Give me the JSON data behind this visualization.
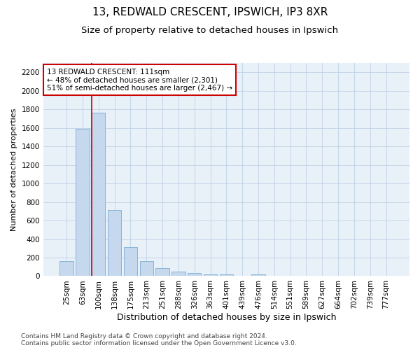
{
  "title1": "13, REDWALD CRESCENT, IPSWICH, IP3 8XR",
  "title2": "Size of property relative to detached houses in Ipswich",
  "xlabel": "Distribution of detached houses by size in Ipswich",
  "ylabel": "Number of detached properties",
  "categories": [
    "25sqm",
    "63sqm",
    "100sqm",
    "138sqm",
    "175sqm",
    "213sqm",
    "251sqm",
    "288sqm",
    "326sqm",
    "363sqm",
    "401sqm",
    "439sqm",
    "476sqm",
    "514sqm",
    "551sqm",
    "589sqm",
    "627sqm",
    "664sqm",
    "702sqm",
    "739sqm",
    "777sqm"
  ],
  "values": [
    160,
    1590,
    1760,
    710,
    315,
    160,
    85,
    50,
    30,
    20,
    20,
    0,
    20,
    0,
    0,
    0,
    0,
    0,
    0,
    0,
    0
  ],
  "bar_color": "#c5d8ee",
  "bar_edge_color": "#7aadd4",
  "vline_index": 2,
  "vline_color": "#cc0000",
  "annotation_line1": "13 REDWALD CRESCENT: 111sqm",
  "annotation_line2": "← 48% of detached houses are smaller (2,301)",
  "annotation_line3": "51% of semi-detached houses are larger (2,467) →",
  "annotation_box_facecolor": "#ffffff",
  "annotation_box_edgecolor": "#cc0000",
  "ylim": [
    0,
    2300
  ],
  "yticks": [
    0,
    200,
    400,
    600,
    800,
    1000,
    1200,
    1400,
    1600,
    1800,
    2000,
    2200
  ],
  "grid_color": "#c5d5e8",
  "bg_color": "#e8f0f8",
  "footnote": "Contains HM Land Registry data © Crown copyright and database right 2024.\nContains public sector information licensed under the Open Government Licence v3.0.",
  "title1_fontsize": 11,
  "title2_fontsize": 9.5,
  "xlabel_fontsize": 9,
  "ylabel_fontsize": 8,
  "tick_fontsize": 7.5,
  "annotation_fontsize": 7.5,
  "footnote_fontsize": 6.5
}
